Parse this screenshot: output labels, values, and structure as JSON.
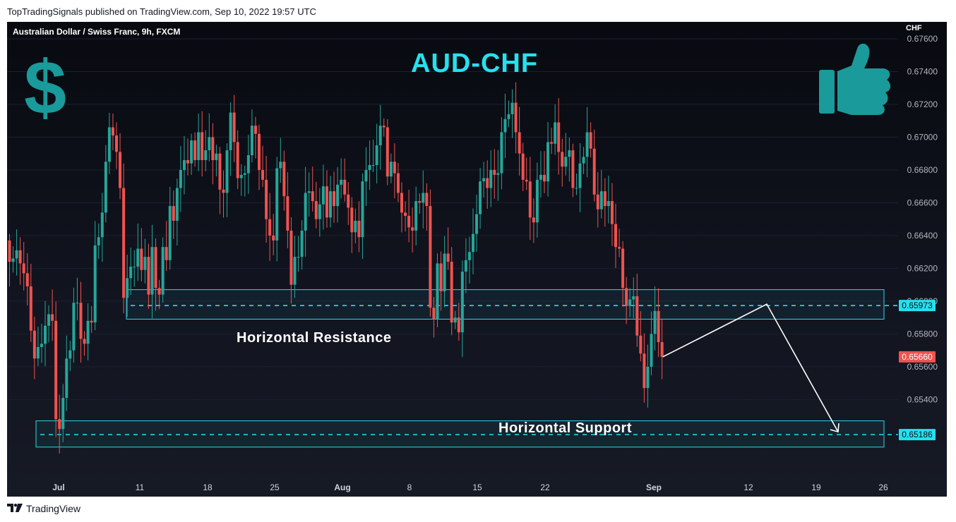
{
  "header": {
    "published_text": "TopTradingSignals published on TradingView.com, Sep 10, 2022 19:57 UTC"
  },
  "chart": {
    "symbol_text": "Australian Dollar / Swiss Franc, 9h, FXCM",
    "currency_unit": "CHF",
    "title": "AUD-CHF",
    "resistance_label": "Horizontal Resistance",
    "support_label": "Horizontal Support",
    "icons": [
      "dollar-sign-icon",
      "thumbs-up-icon"
    ]
  },
  "footer": {
    "brand": "TradingView"
  },
  "colors": {
    "up": "#26a69a",
    "down": "#ef5350",
    "accent": "#26e0f0",
    "zone_border": "#34d4e6",
    "last_price": "#ef5350",
    "icon_teal": "#1a9a9a"
  },
  "chart_data": {
    "type": "candlestick",
    "title": "AUD-CHF",
    "ylabel": "CHF",
    "ylim": [
      0.6498,
      0.6766
    ],
    "y_ticks": [
      "0.65400",
      "0.65600",
      "0.65800",
      "0.66000",
      "0.66200",
      "0.66400",
      "0.66600",
      "0.66800",
      "0.67000",
      "0.67200",
      "0.67400",
      "0.67600"
    ],
    "x_ticks": [
      "Jul",
      "11",
      "18",
      "25",
      "Aug",
      "8",
      "15",
      "22",
      "Sep",
      "12",
      "19",
      "26"
    ],
    "close_start": 0.6637,
    "closes": [
      0.6624,
      0.6626,
      0.6631,
      0.6623,
      0.6617,
      0.6609,
      0.6582,
      0.6565,
      0.6572,
      0.6574,
      0.6585,
      0.6592,
      0.6588,
      0.6528,
      0.6522,
      0.6541,
      0.6565,
      0.657,
      0.6599,
      0.6599,
      0.6577,
      0.6574,
      0.6588,
      0.6587,
      0.6634,
      0.6639,
      0.6654,
      0.6685,
      0.6706,
      0.6701,
      0.6691,
      0.6669,
      0.6602,
      0.6614,
      0.6621,
      0.6621,
      0.6632,
      0.6619,
      0.6627,
      0.6604,
      0.6633,
      0.6608,
      0.6604,
      0.6633,
      0.6625,
      0.6658,
      0.6649,
      0.6669,
      0.668,
      0.6686,
      0.6684,
      0.6698,
      0.6686,
      0.6703,
      0.6686,
      0.6692,
      0.67,
      0.6686,
      0.669,
      0.6668,
      0.6666,
      0.6692,
      0.6715,
      0.6697,
      0.6675,
      0.6677,
      0.6678,
      0.6689,
      0.6707,
      0.6702,
      0.668,
      0.6674,
      0.665,
      0.664,
      0.6637,
      0.6681,
      0.6685,
      0.6664,
      0.6643,
      0.661,
      0.6627,
      0.6627,
      0.6643,
      0.6666,
      0.6667,
      0.6661,
      0.665,
      0.6659,
      0.667,
      0.6651,
      0.6667,
      0.6658,
      0.6671,
      0.6674,
      0.6665,
      0.6657,
      0.6642,
      0.6649,
      0.6639,
      0.6673,
      0.668,
      0.6683,
      0.6683,
      0.6695,
      0.6707,
      0.6706,
      0.6676,
      0.6685,
      0.6678,
      0.6666,
      0.6654,
      0.6652,
      0.6645,
      0.6643,
      0.6661,
      0.666,
      0.6666,
      0.6658,
      0.6596,
      0.6589,
      0.6623,
      0.6606,
      0.6629,
      0.6624,
      0.6587,
      0.659,
      0.6581,
      0.6618,
      0.6625,
      0.663,
      0.6641,
      0.6653,
      0.6673,
      0.6675,
      0.6669,
      0.668,
      0.6677,
      0.6678,
      0.6703,
      0.6711,
      0.6714,
      0.6721,
      0.6703,
      0.669,
      0.6674,
      0.6673,
      0.6651,
      0.6648,
      0.6674,
      0.6677,
      0.6673,
      0.6697,
      0.6696,
      0.6709,
      0.6691,
      0.6682,
      0.6688,
      0.6692,
      0.6669,
      0.6669,
      0.6684,
      0.6688,
      0.6703,
      0.6693,
      0.6665,
      0.6656,
      0.6667,
      0.6658,
      0.6661,
      0.6647,
      0.6633,
      0.6632,
      0.6608,
      0.6597,
      0.6601,
      0.6603,
      0.6579,
      0.6568,
      0.6547,
      0.656,
      0.658,
      0.6594,
      0.6575,
      0.6566
    ],
    "x_range": [
      "Jun 27, 2022",
      "Sep 28, 2022"
    ],
    "resistance_level": 0.65973,
    "resistance_zone": [
      0.6589,
      0.6607
    ],
    "support_level": 0.65186,
    "support_zone": [
      0.6511,
      0.6527
    ],
    "last_price": 0.6566,
    "price_labels": [
      "0.65973",
      "0.65660",
      "0.65186"
    ],
    "forecast_path": [
      0.6566,
      0.65973,
      0.65186
    ]
  }
}
